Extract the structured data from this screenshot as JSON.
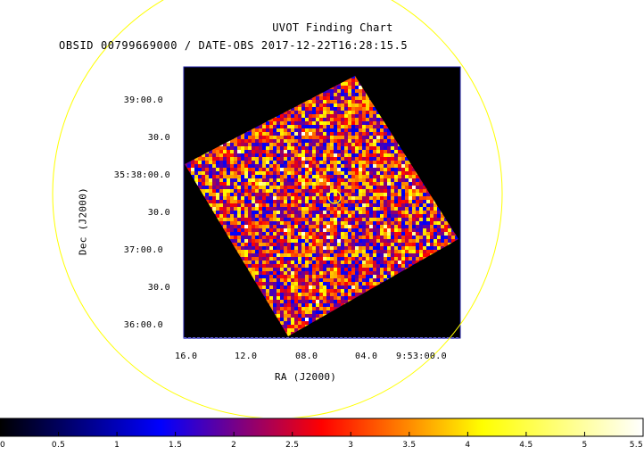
{
  "chart_data": {
    "type": "heatmap",
    "title": "UVOT Finding Chart",
    "subtitle": "OBSID 00799669000 / DATE-OBS 2017-12-22T16:28:15.5",
    "xlabel": "RA (J2000)",
    "ylabel": "Dec (J2000)",
    "x_tick_labels": [
      "16.0",
      "12.0",
      "08.0",
      "04.0",
      "9:53:00.0"
    ],
    "y_tick_labels": [
      "39:00.0",
      "30.0",
      "35:38:00.0",
      "30.0",
      "37:00.0",
      "30.0",
      "36:00.0"
    ],
    "colorbar": {
      "ticks": [
        0,
        0.5,
        1,
        1.5,
        2,
        2.5,
        3,
        3.5,
        4,
        4.5,
        5,
        5.5
      ],
      "tick_labels": [
        "0",
        "0.5",
        "1",
        "1.5",
        "2",
        "2.5",
        "3",
        "3.5",
        "4",
        "4.5",
        "5",
        "5.5"
      ],
      "range": [
        0,
        5.5
      ],
      "colormap": [
        "#000000",
        "#0000ff",
        "#ff0000",
        "#ffff00",
        "#ffffff"
      ]
    },
    "colors": {
      "field_circle": "#ffff00",
      "source_marker": "#ffff00",
      "image_background": "#000000",
      "frame": "#1a1aa0"
    }
  }
}
